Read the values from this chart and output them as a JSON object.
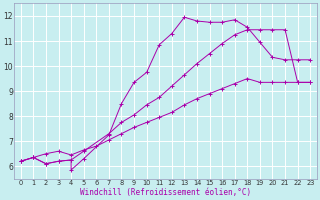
{
  "bg_color": "#c8eef0",
  "line_color": "#aa00aa",
  "grid_color": "#ffffff",
  "xlabel": "Windchill (Refroidissement éolien,°C)",
  "xlim": [
    -0.5,
    23.5
  ],
  "ylim": [
    5.5,
    12.5
  ],
  "xticks": [
    0,
    1,
    2,
    3,
    4,
    5,
    6,
    7,
    8,
    9,
    10,
    11,
    12,
    13,
    14,
    15,
    16,
    17,
    18,
    19,
    20,
    21,
    22,
    23
  ],
  "yticks": [
    6,
    7,
    8,
    9,
    10,
    11,
    12
  ],
  "line1_x": [
    0,
    1,
    2,
    3,
    4,
    4,
    5,
    7,
    8,
    9,
    10,
    11,
    12,
    13,
    14,
    15,
    16,
    17,
    18,
    19,
    20,
    21,
    22,
    23
  ],
  "line1_y": [
    6.2,
    6.35,
    6.1,
    6.2,
    6.25,
    5.85,
    6.3,
    7.25,
    8.5,
    9.35,
    9.75,
    10.85,
    11.3,
    11.95,
    11.8,
    11.75,
    11.75,
    11.85,
    11.55,
    10.95,
    10.35,
    10.25,
    10.25,
    10.25
  ],
  "line2_x": [
    0,
    1,
    2,
    3,
    4,
    5,
    7,
    8,
    9,
    10,
    11,
    12,
    13,
    14,
    15,
    16,
    17,
    18,
    19,
    20,
    21,
    22,
    23
  ],
  "line2_y": [
    6.2,
    6.35,
    6.1,
    6.2,
    6.25,
    6.6,
    7.3,
    7.75,
    8.05,
    8.45,
    8.75,
    9.2,
    9.65,
    10.1,
    10.5,
    10.9,
    11.25,
    11.45,
    11.45,
    11.45,
    11.45,
    9.35,
    9.35
  ],
  "line3_x": [
    0,
    1,
    2,
    3,
    4,
    5,
    6,
    7,
    8,
    9,
    10,
    11,
    12,
    13,
    14,
    15,
    16,
    17,
    18,
    19,
    20,
    21,
    22,
    23
  ],
  "line3_y": [
    6.2,
    6.35,
    6.5,
    6.6,
    6.45,
    6.65,
    6.8,
    7.05,
    7.3,
    7.55,
    7.75,
    7.95,
    8.15,
    8.45,
    8.7,
    8.9,
    9.1,
    9.3,
    9.5,
    9.35,
    9.35,
    9.35,
    9.35,
    9.35
  ],
  "xlabel_fontsize": 5.5,
  "tick_fontsize_x": 4.8,
  "tick_fontsize_y": 5.5
}
